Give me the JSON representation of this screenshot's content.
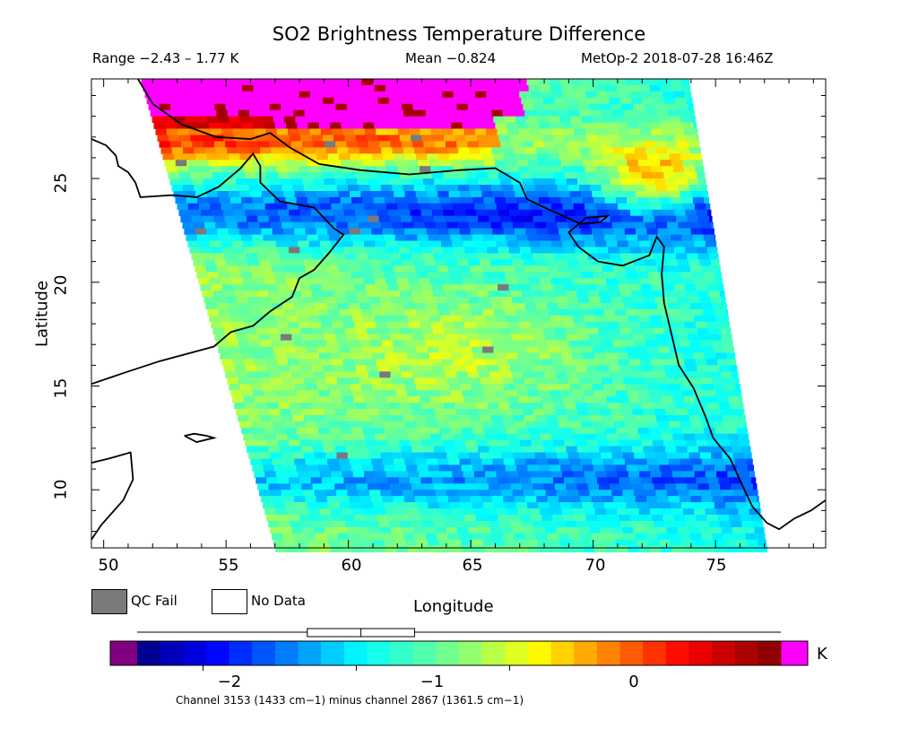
{
  "title": "SO2 Brightness Temperature Difference",
  "subtitle": {
    "range": "Range −2.43 – 1.77 K",
    "mean": "Mean −0.824",
    "satellite_time": "MetOp-2 2018-07-28 16:46Z"
  },
  "axes": {
    "xlabel": "Longitude",
    "ylabel": "Latitude",
    "x_ticks": [
      "50",
      "55",
      "60",
      "65",
      "70",
      "75"
    ],
    "y_ticks": [
      "25",
      "20",
      "15",
      "10"
    ],
    "x_range": [
      49.5,
      79.5
    ],
    "y_range": [
      7.2,
      29.8
    ]
  },
  "legend": {
    "qc_fail": "QC Fail",
    "no_data": "No Data",
    "qc_color": "#7a7a7a"
  },
  "colorbar": {
    "unit": "K",
    "ticks": [
      "−2",
      "−1",
      "0"
    ],
    "tick_values": [
      -2,
      -1,
      0
    ],
    "range": [
      -2.43,
      1.77
    ],
    "under_color": "#800080",
    "over_color": "#ff00ff",
    "boxplot": {
      "min": -2.43,
      "q1": -1.32,
      "median": -0.97,
      "q3": -0.62,
      "max": 1.77
    }
  },
  "footnote": "Channel 3153 (1433 cm−1) minus channel 2867 (1361.5 cm−1)",
  "map": {
    "coastlines": "Arabian Peninsula, Pakistan, India (Kutch and Kathiawar), Oman",
    "swath_edges": {
      "left": [
        [
          51.5,
          29.8
        ],
        [
          57.0,
          7.2
        ]
      ],
      "right": [
        [
          73.9,
          29.8
        ],
        [
          77.1,
          7.2
        ]
      ]
    }
  }
}
